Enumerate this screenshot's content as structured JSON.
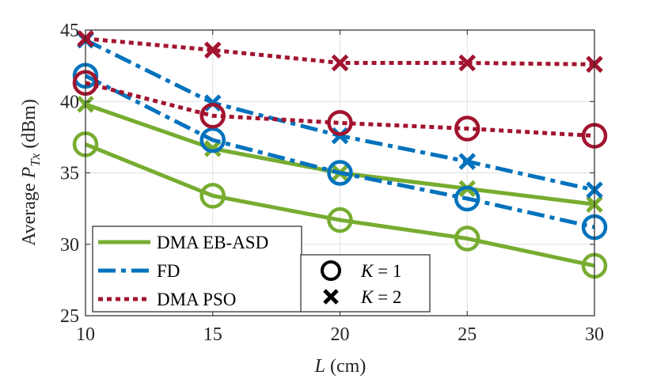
{
  "chart_data": {
    "type": "line",
    "title": "",
    "xlabel": "L (cm)",
    "xlabel_var": "L",
    "xlabel_unit": " (cm)",
    "ylabel_prefix": "Average ",
    "ylabel_var": "P",
    "ylabel_sub": "Tx",
    "ylabel_unit": " (dBm)",
    "x": [
      10,
      15,
      20,
      25,
      30
    ],
    "xlim": [
      10,
      30
    ],
    "ylim": [
      25,
      45
    ],
    "xticks": [
      "10",
      "15",
      "20",
      "25",
      "30"
    ],
    "yticks": [
      "25",
      "30",
      "35",
      "40",
      "45"
    ],
    "grid": true,
    "series": [
      {
        "name": "DMA EB-ASD",
        "K": 1,
        "color": "#77AC30",
        "dash": "solid",
        "marker": "circle",
        "values": [
          37.0,
          33.4,
          31.7,
          30.4,
          28.5
        ]
      },
      {
        "name": "DMA EB-ASD",
        "K": 2,
        "color": "#77AC30",
        "dash": "solid",
        "marker": "x",
        "values": [
          39.8,
          36.7,
          35.0,
          33.9,
          32.8
        ]
      },
      {
        "name": "FD",
        "K": 1,
        "color": "#0072BD",
        "dash": "dashdot",
        "marker": "circle",
        "values": [
          41.8,
          37.3,
          35.0,
          33.2,
          31.2
        ]
      },
      {
        "name": "FD",
        "K": 2,
        "color": "#0072BD",
        "dash": "dashdot",
        "marker": "x",
        "values": [
          44.3,
          39.9,
          37.6,
          35.8,
          33.8
        ]
      },
      {
        "name": "DMA PSO",
        "K": 1,
        "color": "#A2142F",
        "dash": "dotted",
        "marker": "circle",
        "values": [
          41.3,
          39.0,
          38.5,
          38.1,
          37.6
        ]
      },
      {
        "name": "DMA PSO",
        "K": 2,
        "color": "#A2142F",
        "dash": "dotted",
        "marker": "x",
        "values": [
          44.4,
          43.6,
          42.7,
          42.7,
          42.6
        ]
      }
    ],
    "legend_methods": [
      {
        "label": "DMA EB-ASD",
        "color": "#77AC30",
        "dash": "solid"
      },
      {
        "label": "FD",
        "color": "#0072BD",
        "dash": "dashdot"
      },
      {
        "label": "DMA PSO",
        "color": "#A2142F",
        "dash": "dotted"
      }
    ],
    "legend_markers": [
      {
        "marker": "circle",
        "var": "K",
        "eq": " = 1"
      },
      {
        "marker": "x",
        "var": "K",
        "eq": " = 2"
      }
    ],
    "legend_placement": "bottom-left"
  }
}
